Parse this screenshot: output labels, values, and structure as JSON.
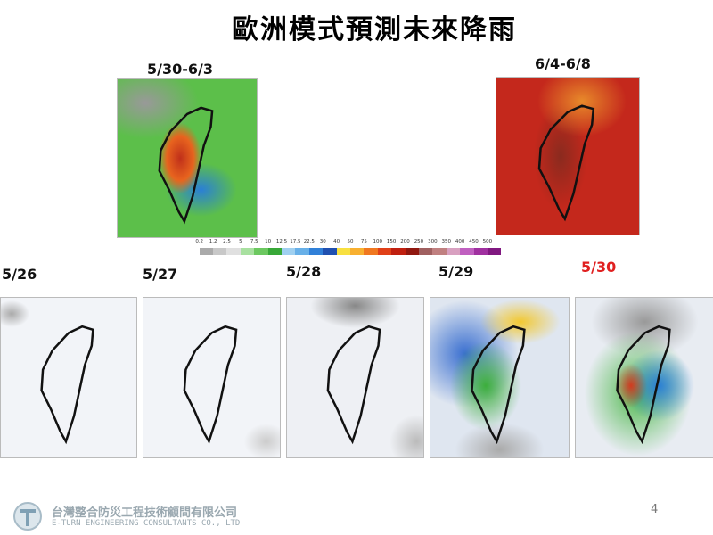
{
  "title": "歐洲模式預測未來降雨",
  "forecasts": [
    {
      "label": "5/30-6/3"
    },
    {
      "label": "6/4-6/8"
    }
  ],
  "legend": [
    0.2,
    1.2,
    2.5,
    5,
    7.5,
    10,
    12.5,
    17.5,
    22.5,
    30,
    40,
    50,
    75,
    100,
    150,
    200,
    250,
    300,
    350,
    400,
    450,
    500
  ],
  "days": [
    {
      "label": "5/26"
    },
    {
      "label": "5/27"
    },
    {
      "label": "5/28"
    },
    {
      "label": "5/29"
    },
    {
      "label": "5/30"
    }
  ],
  "footer": {
    "company": "台灣整合防災工程技術顧問有限公司",
    "company_en": "E-TURN ENGINEERING CONSULTANTS CO., LTD",
    "page": "4"
  }
}
